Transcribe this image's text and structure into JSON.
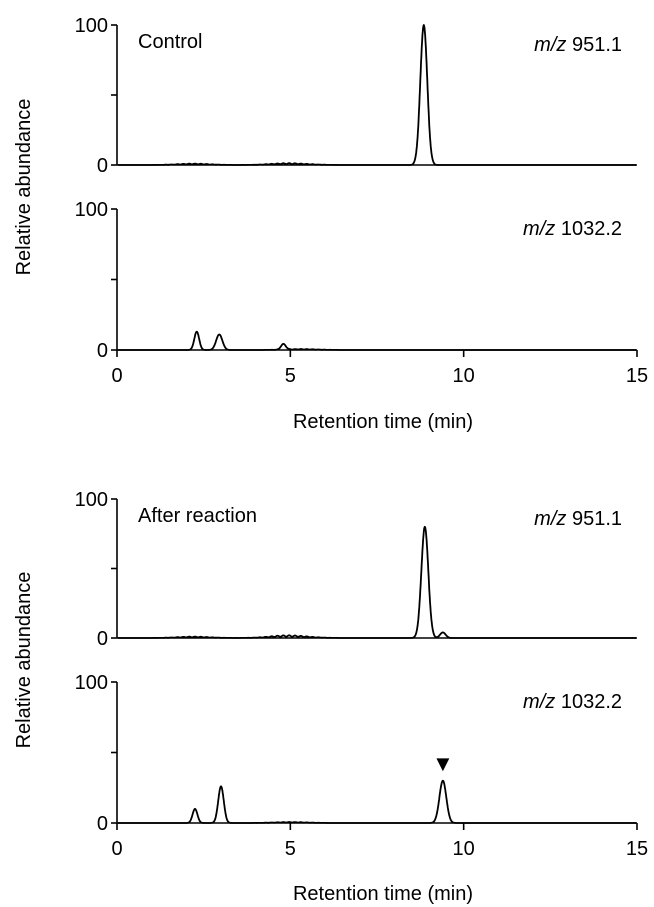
{
  "chart_data": {
    "type": "line",
    "x_axis": {
      "label": "Retention time (min)",
      "range": [
        0,
        15
      ],
      "ticks": [
        0,
        5,
        10,
        15
      ]
    },
    "y_axis": {
      "label": "Relative abundance",
      "range": [
        0,
        100
      ],
      "ticks": [
        0,
        100
      ]
    },
    "grid": false,
    "groups": [
      {
        "condition": "Control",
        "panels": [
          {
            "mz_prefix": "m/z",
            "mz_value": "951.1",
            "baseline_noise": [
              [
                2.2,
                1
              ],
              [
                4.8,
                1
              ],
              [
                5.3,
                0.5
              ]
            ],
            "peaks": [
              {
                "rt": 8.85,
                "height": 100,
                "width": 0.1
              }
            ]
          },
          {
            "mz_prefix": "m/z",
            "mz_value": "1032.2",
            "baseline_noise": [
              [
                5.3,
                0.7
              ]
            ],
            "peaks": [
              {
                "rt": 2.3,
                "height": 13,
                "width": 0.07
              },
              {
                "rt": 2.95,
                "height": 11,
                "width": 0.09
              },
              {
                "rt": 4.8,
                "height": 4,
                "width": 0.07
              }
            ]
          }
        ]
      },
      {
        "condition": "After reaction",
        "panels": [
          {
            "mz_prefix": "m/z",
            "mz_value": "951.1",
            "baseline_noise": [
              [
                2.2,
                1
              ],
              [
                4.8,
                1.5
              ],
              [
                5.3,
                0.7
              ]
            ],
            "peaks": [
              {
                "rt": 8.88,
                "height": 80,
                "width": 0.1
              },
              {
                "rt": 9.4,
                "height": 4,
                "width": 0.08
              }
            ]
          },
          {
            "mz_prefix": "m/z",
            "mz_value": "1032.2",
            "baseline_noise": [
              [
                5.0,
                0.7
              ]
            ],
            "peaks": [
              {
                "rt": 2.25,
                "height": 10,
                "width": 0.07
              },
              {
                "rt": 3.0,
                "height": 26,
                "width": 0.08
              },
              {
                "rt": 9.4,
                "height": 30,
                "width": 0.1
              }
            ],
            "marker": {
              "symbol": "▼",
              "rt": 9.4
            }
          }
        ]
      }
    ]
  }
}
